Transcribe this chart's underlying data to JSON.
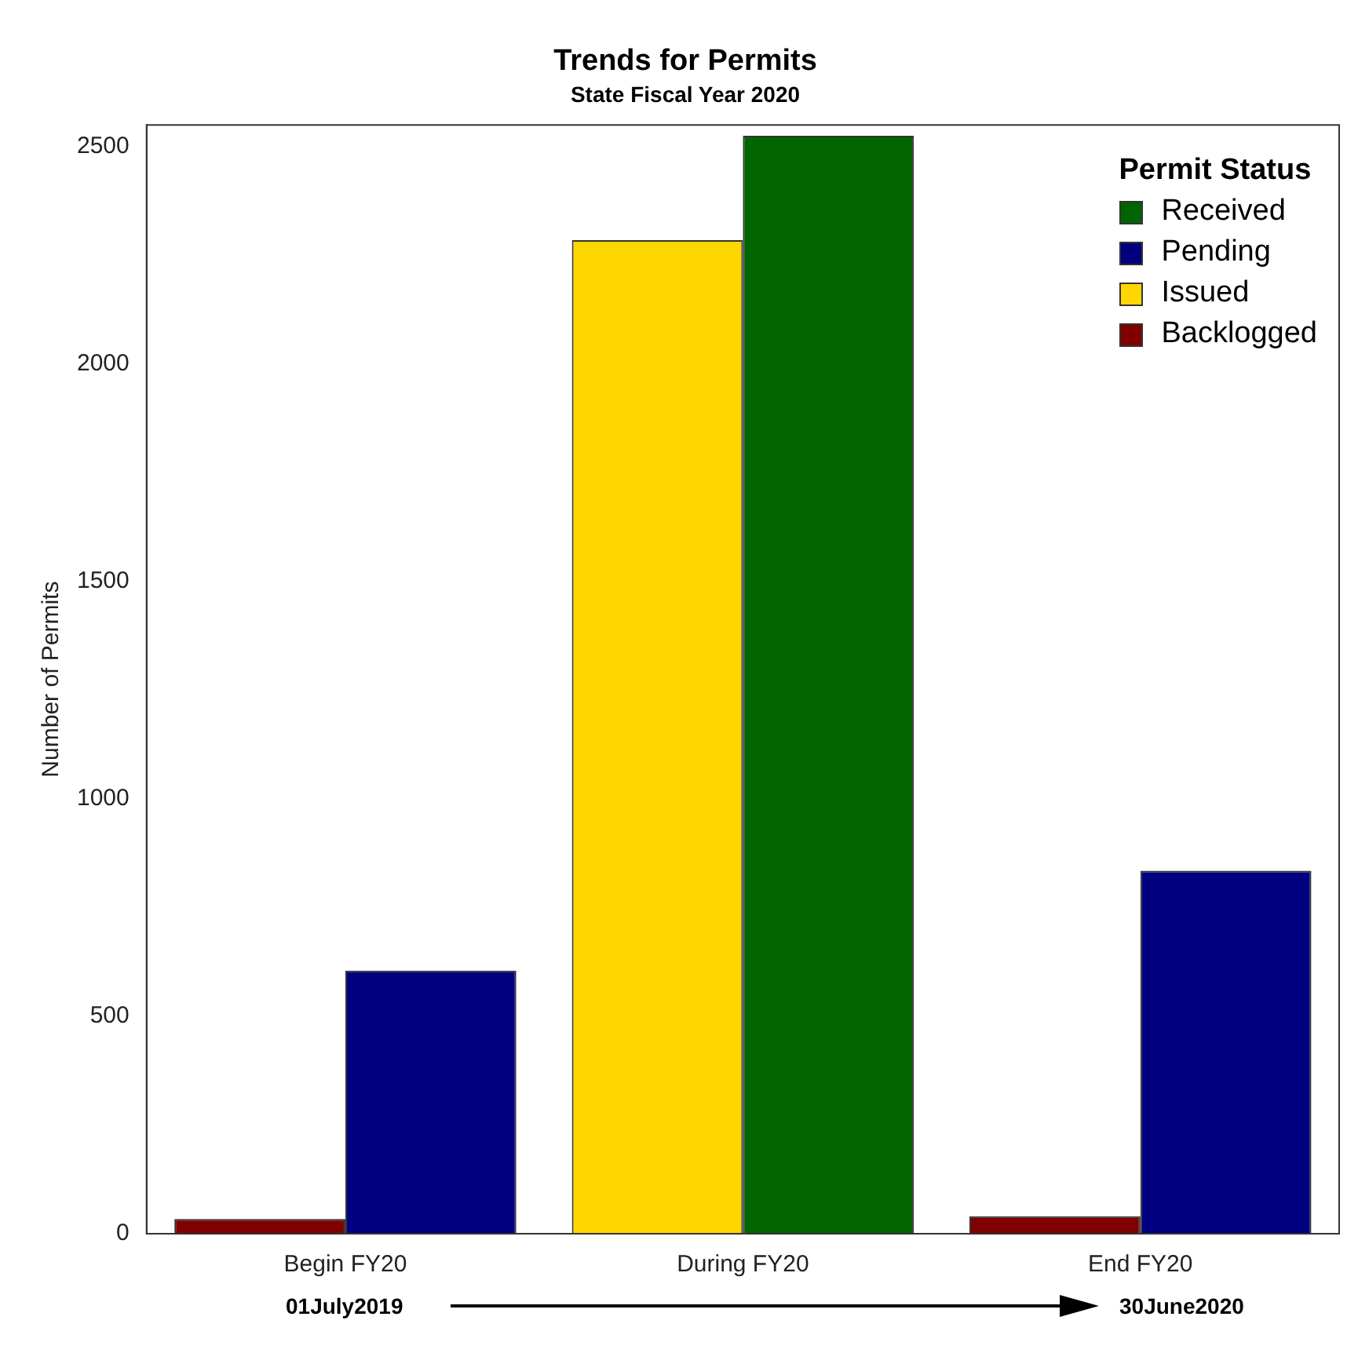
{
  "chart_data": {
    "type": "bar",
    "title": "Trends for Permits",
    "subtitle": "State Fiscal Year 2020",
    "ylabel": "Number of Permits",
    "legend_title": "Permit Status",
    "legend": "top right",
    "categories": [
      "Begin FY20",
      "During FY20",
      "End FY20"
    ],
    "series": [
      {
        "name": "Received",
        "color": "#006400",
        "values": [
          null,
          2525,
          null
        ]
      },
      {
        "name": "Pending",
        "color": "#000080",
        "values": [
          605,
          null,
          835
        ]
      },
      {
        "name": "Issued",
        "color": "#ffd700",
        "values": [
          null,
          2285,
          null
        ]
      },
      {
        "name": "Backlogged",
        "color": "#800000",
        "values": [
          34,
          null,
          40
        ]
      }
    ],
    "ylim": [
      0,
      2550
    ],
    "yticks": [
      0,
      500,
      1000,
      1500,
      2000,
      2500
    ],
    "grid": false,
    "annotations": [
      "01July2019",
      "30June2020"
    ]
  }
}
